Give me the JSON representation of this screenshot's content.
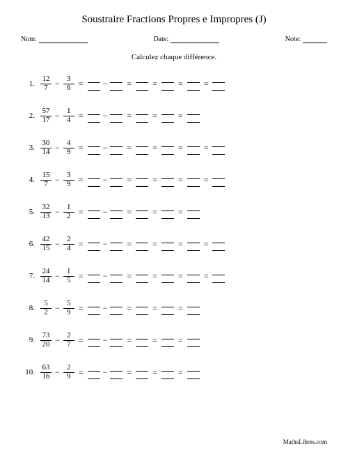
{
  "title": "Soustraire Fractions Propres e Impropres (J)",
  "header": {
    "name_label": "Nom:",
    "date_label": "Date:",
    "note_label": "Note:"
  },
  "instruction": "Calculez chaque différence.",
  "name_underline_width": 70,
  "date_underline_width": 70,
  "note_underline_width": 35,
  "problems": [
    {
      "n": "1.",
      "a_n": "12",
      "a_d": "7",
      "b_n": "3",
      "b_d": "6",
      "steps": 5
    },
    {
      "n": "2.",
      "a_n": "57",
      "a_d": "17",
      "b_n": "1",
      "b_d": "4",
      "steps": 4
    },
    {
      "n": "3.",
      "a_n": "30",
      "a_d": "14",
      "b_n": "4",
      "b_d": "9",
      "steps": 5
    },
    {
      "n": "4.",
      "a_n": "15",
      "a_d": "7",
      "b_n": "3",
      "b_d": "9",
      "steps": 5
    },
    {
      "n": "5.",
      "a_n": "32",
      "a_d": "13",
      "b_n": "1",
      "b_d": "2",
      "steps": 4
    },
    {
      "n": "6.",
      "a_n": "42",
      "a_d": "15",
      "b_n": "2",
      "b_d": "4",
      "steps": 5
    },
    {
      "n": "7.",
      "a_n": "24",
      "a_d": "14",
      "b_n": "1",
      "b_d": "5",
      "steps": 5
    },
    {
      "n": "8.",
      "a_n": "5",
      "a_d": "2",
      "b_n": "5",
      "b_d": "9",
      "steps": 4
    },
    {
      "n": "9.",
      "a_n": "73",
      "a_d": "20",
      "b_n": "2",
      "b_d": "7",
      "steps": 4
    },
    {
      "n": "10.",
      "a_n": "63",
      "a_d": "16",
      "b_n": "2",
      "b_d": "9",
      "steps": 4
    }
  ],
  "footer": "MathsLibres.com",
  "colors": {
    "text": "#000000",
    "background": "#ffffff",
    "line": "#000000"
  },
  "typography": {
    "title_fontsize": 15,
    "header_fontsize": 10,
    "instruction_fontsize": 11,
    "problem_fontsize": 11,
    "footer_fontsize": 9,
    "font_family": "Times New Roman"
  }
}
